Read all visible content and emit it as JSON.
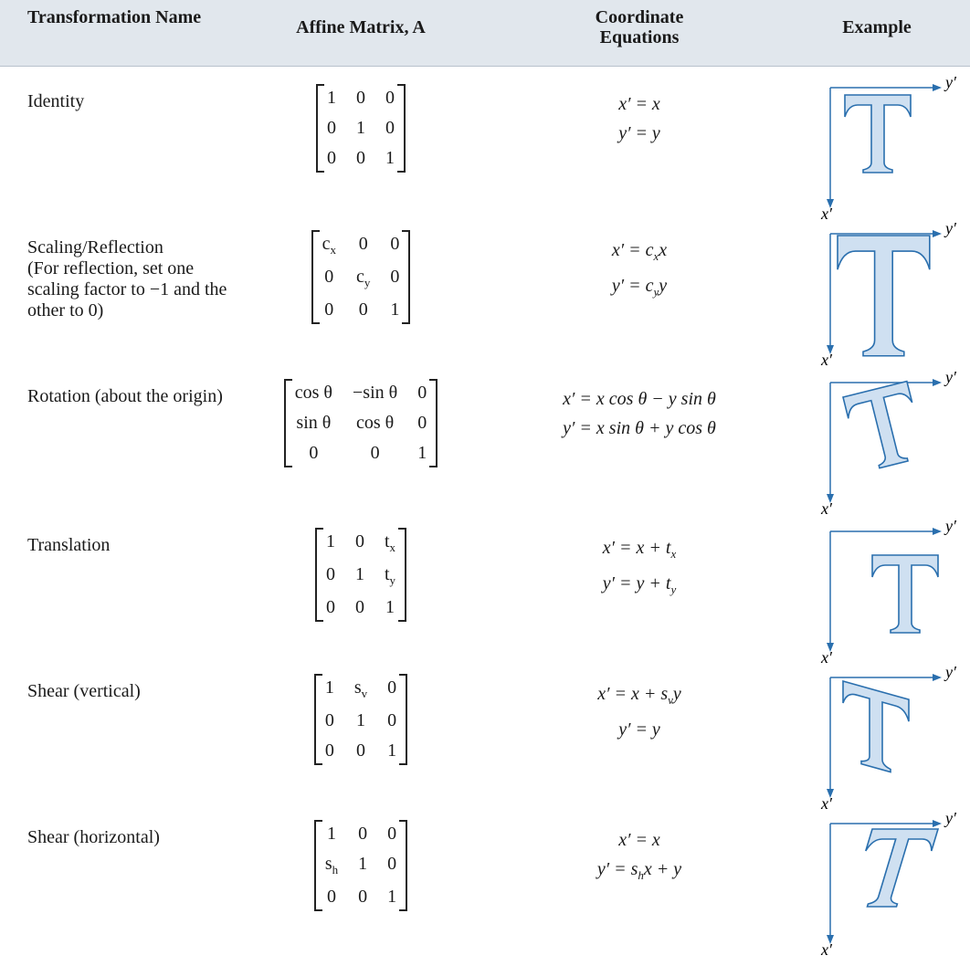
{
  "header": [
    "Transformation Name",
    "Affine Matrix, A",
    "Coordinate Equations",
    "Example"
  ],
  "example_axes": {
    "x": "x′",
    "y": "y′"
  },
  "rows": [
    {
      "name": "Identity",
      "matrix": [
        [
          "1",
          "0",
          "0"
        ],
        [
          "0",
          "1",
          "0"
        ],
        [
          "0",
          "0",
          "1"
        ]
      ],
      "equations": [
        [
          "x′ = x"
        ],
        [
          "y′ = y"
        ]
      ]
    },
    {
      "name": "Scaling/Reflection",
      "note": "(For reflection, set one scaling factor to −1 and the other to 0)",
      "matrix": [
        [
          [
            "c",
            {
              "sub": "x"
            }
          ],
          "0",
          "0"
        ],
        [
          "0",
          [
            "c",
            {
              "sub": "y"
            }
          ],
          "0"
        ],
        [
          "0",
          "0",
          "1"
        ]
      ],
      "equations": [
        [
          "x′ = c",
          {
            "sub": "x"
          },
          "x"
        ],
        [
          "y′ = c",
          {
            "sub": "y"
          },
          "y"
        ]
      ]
    },
    {
      "name": "Rotation (about the origin)",
      "matrix": [
        [
          "cos θ",
          "−sin θ",
          "0"
        ],
        [
          "sin θ",
          "cos θ",
          "0"
        ],
        [
          "0",
          "0",
          "1"
        ]
      ],
      "equations": [
        [
          "x′ = x cos θ − y sin θ"
        ],
        [
          "y′ = x sin θ + y cos θ"
        ]
      ]
    },
    {
      "name": "Translation",
      "matrix": [
        [
          "1",
          "0",
          [
            "t",
            {
              "sub": "x"
            }
          ]
        ],
        [
          "0",
          "1",
          [
            "t",
            {
              "sub": "y"
            }
          ]
        ],
        [
          "0",
          "0",
          "1"
        ]
      ],
      "equations": [
        [
          "x′ = x + t",
          {
            "sub": "x"
          }
        ],
        [
          "y′ = y + t",
          {
            "sub": "y"
          }
        ]
      ]
    },
    {
      "name": "Shear (vertical)",
      "matrix": [
        [
          "1",
          [
            "s",
            {
              "sub": "v"
            }
          ],
          "0"
        ],
        [
          "0",
          "1",
          "0"
        ],
        [
          "0",
          "0",
          "1"
        ]
      ],
      "equations": [
        [
          "x′ = x + s",
          {
            "sub": "v"
          },
          "y"
        ],
        [
          "y′ = y"
        ]
      ]
    },
    {
      "name": "Shear (horizontal)",
      "matrix": [
        [
          "1",
          "0",
          "0"
        ],
        [
          [
            "s",
            {
              "sub": "h"
            }
          ],
          "1",
          "0"
        ],
        [
          "0",
          "0",
          "1"
        ]
      ],
      "equations": [
        [
          "x′ = x"
        ],
        [
          "y′ = s",
          {
            "sub": "h"
          },
          "x + y"
        ]
      ]
    }
  ]
}
